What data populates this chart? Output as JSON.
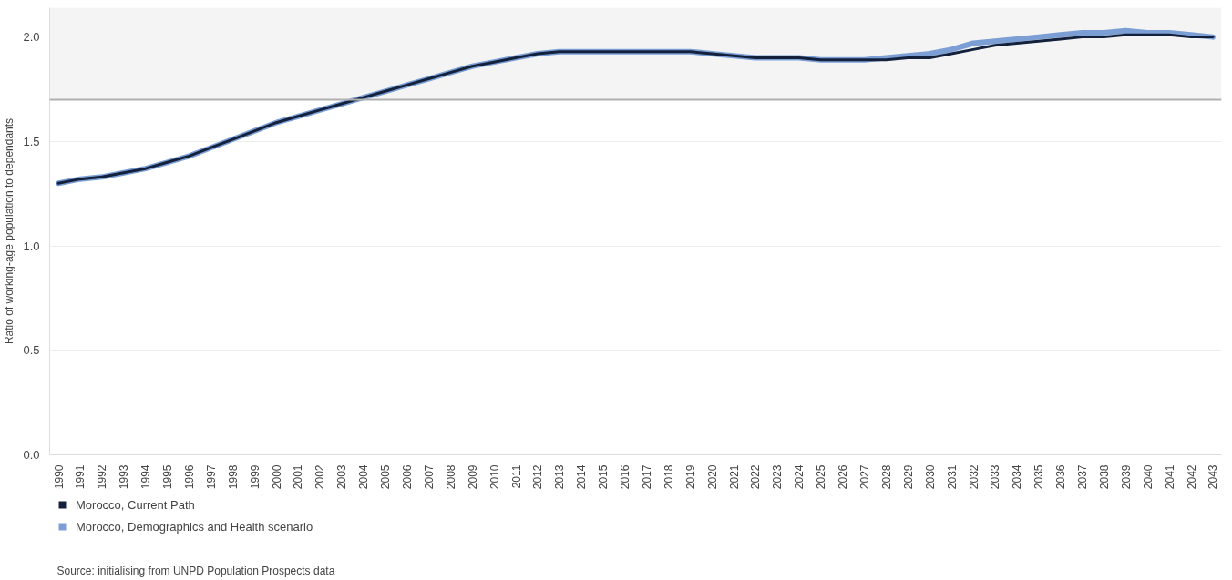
{
  "chart_data": {
    "type": "line",
    "ylabel": "Ratio of working-age population to dependants",
    "categories": [
      "1990",
      "1991",
      "1992",
      "1993",
      "1994",
      "1995",
      "1996",
      "1997",
      "1998",
      "1999",
      "2000",
      "2001",
      "2002",
      "2003",
      "2004",
      "2005",
      "2006",
      "2007",
      "2008",
      "2009",
      "2010",
      "2011",
      "2012",
      "2013",
      "2014",
      "2015",
      "2016",
      "2017",
      "2018",
      "2019",
      "2020",
      "2021",
      "2022",
      "2023",
      "2024",
      "2025",
      "2026",
      "2027",
      "2028",
      "2029",
      "2030",
      "2031",
      "2032",
      "2033",
      "2034",
      "2035",
      "2036",
      "2037",
      "2038",
      "2039",
      "2040",
      "2041",
      "2042",
      "2043"
    ],
    "series": [
      {
        "name": "Morocco, Demographics and Health scenario",
        "color": "#7b9fd4",
        "values": [
          1.3,
          1.32,
          1.33,
          1.35,
          1.37,
          1.4,
          1.43,
          1.47,
          1.51,
          1.55,
          1.59,
          1.62,
          1.65,
          1.68,
          1.71,
          1.74,
          1.77,
          1.8,
          1.83,
          1.86,
          1.88,
          1.9,
          1.92,
          1.93,
          1.93,
          1.93,
          1.93,
          1.93,
          1.93,
          1.93,
          1.92,
          1.91,
          1.9,
          1.9,
          1.9,
          1.89,
          1.89,
          1.89,
          1.9,
          1.91,
          1.92,
          1.94,
          1.97,
          1.98,
          1.99,
          2.0,
          2.01,
          2.02,
          2.02,
          2.03,
          2.02,
          2.02,
          2.01,
          2.0
        ]
      },
      {
        "name": "Morocco, Current Path",
        "color": "#14213d",
        "values": [
          1.3,
          1.32,
          1.33,
          1.35,
          1.37,
          1.4,
          1.43,
          1.47,
          1.51,
          1.55,
          1.59,
          1.62,
          1.65,
          1.68,
          1.71,
          1.74,
          1.77,
          1.8,
          1.83,
          1.86,
          1.88,
          1.9,
          1.92,
          1.93,
          1.93,
          1.93,
          1.93,
          1.93,
          1.93,
          1.93,
          1.92,
          1.91,
          1.9,
          1.9,
          1.9,
          1.89,
          1.89,
          1.89,
          1.89,
          1.9,
          1.9,
          1.92,
          1.94,
          1.96,
          1.97,
          1.98,
          1.99,
          2.0,
          2.0,
          2.01,
          2.01,
          2.01,
          2.0,
          2.0
        ]
      }
    ],
    "ylim": [
      0,
      2.14
    ],
    "yticks": [
      {
        "value": 0,
        "label": "0.0"
      },
      {
        "value": 0.5,
        "label": "0.5"
      },
      {
        "value": 1,
        "label": "1.0"
      },
      {
        "value": 1.5,
        "label": "1.5"
      },
      {
        "value": 2,
        "label": "2.0"
      }
    ],
    "grid": "y",
    "legend": "bottom",
    "line_style": "solid",
    "marker": "none",
    "bands": [
      {
        "axis": "y",
        "from": 1.7,
        "to": 2.14,
        "color": "#f4f4f4"
      }
    ],
    "ref_lines": [
      {
        "axis": "y",
        "value": 1.7,
        "color": "#b0b0b0"
      }
    ],
    "annotations": [
      "Source: initialising from UNPD Population Prospects data"
    ]
  }
}
